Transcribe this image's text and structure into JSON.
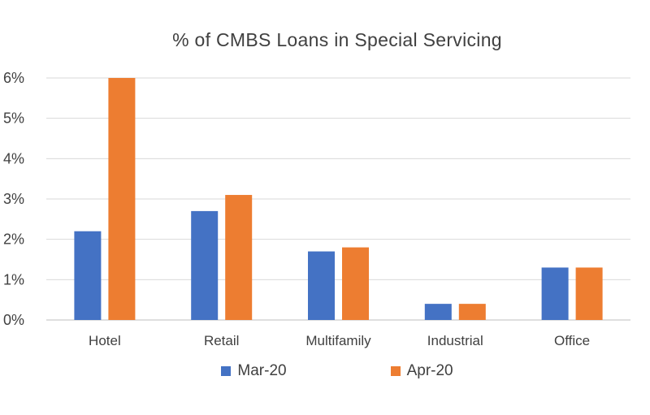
{
  "chart_data": {
    "type": "bar",
    "title": "% of CMBS Loans in Special Servicing",
    "categories": [
      "Hotel",
      "Retail",
      "Multifamily",
      "Industrial",
      "Office"
    ],
    "series": [
      {
        "name": "Mar-20",
        "color": "#4472C4",
        "values": [
          2.2,
          2.7,
          1.7,
          0.4,
          1.3
        ]
      },
      {
        "name": "Apr-20",
        "color": "#ED7D31",
        "values": [
          6.0,
          3.1,
          1.8,
          0.4,
          1.3
        ]
      }
    ],
    "y_ticks": [
      "0%",
      "1%",
      "2%",
      "3%",
      "4%",
      "5%",
      "6%"
    ],
    "ylim": [
      0,
      6
    ],
    "grid": true,
    "legend_position": "bottom"
  }
}
